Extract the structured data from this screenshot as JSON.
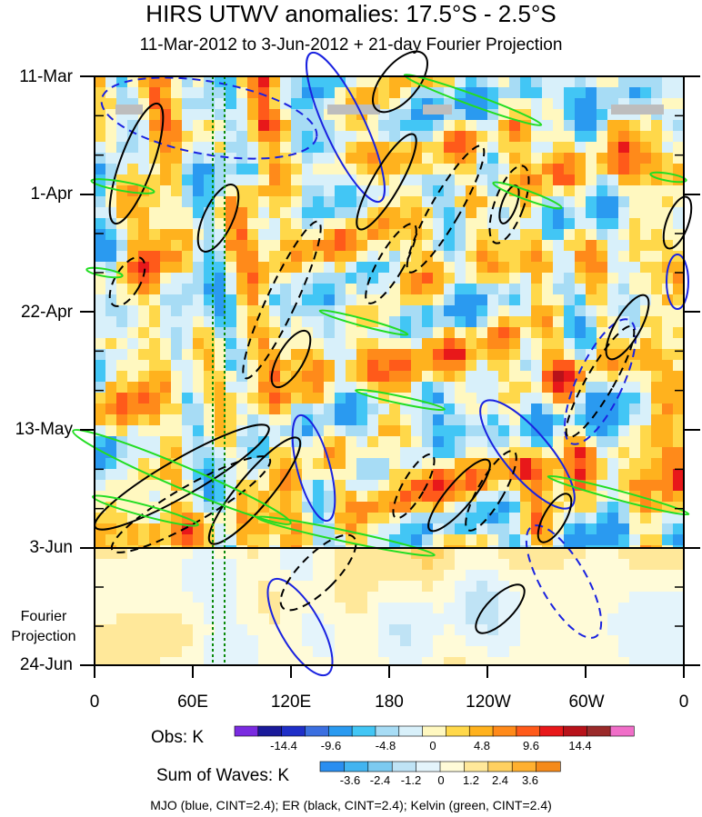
{
  "chart_data": {
    "type": "heatmap",
    "title": "HIRS UTWV anomalies: 17.5°S - 2.5°S",
    "subtitle": "11-Mar-2012 to 3-Jun-2012 + 21-day Fourier Projection",
    "y_ticks": [
      "11-Mar",
      "1-Apr",
      "22-Apr",
      "13-May",
      "3-Jun",
      "24-Jun"
    ],
    "x_ticks": [
      "0",
      "60E",
      "120E",
      "180",
      "120W",
      "60W",
      "0"
    ],
    "projection_label_lines": [
      "Fourier",
      "Projection"
    ],
    "obs_colorbar": {
      "label": "Obs: K",
      "tick_labels": [
        "-14.4",
        "-9.6",
        "-4.8",
        "0",
        "4.8",
        "9.6",
        "14.4"
      ],
      "colors": [
        "#7a2be0",
        "#1a1a9a",
        "#1f2fc8",
        "#3b6fe0",
        "#2a9af0",
        "#42c6f5",
        "#a7dcf5",
        "#d8f0fa",
        "#fff8c0",
        "#ffd84a",
        "#ffb21e",
        "#ff8a1a",
        "#ff5a1a",
        "#e8181a",
        "#b8121a",
        "#9a2a2a",
        "#f06ec8"
      ]
    },
    "waves_colorbar": {
      "label": "Sum of Waves: K",
      "tick_labels": [
        "-3.6",
        "-2.4",
        "-1.2",
        "0",
        "1.2",
        "2.4",
        "3.6"
      ],
      "colors": [
        "#2a8ef0",
        "#42b4f0",
        "#7ccaf0",
        "#bfe3f5",
        "#e4f4fb",
        "#fffbd8",
        "#ffe89a",
        "#ffd060",
        "#ffb030",
        "#f58a1a"
      ]
    },
    "footnote": "MJO (blue, CINT=2.4); ER (black, CINT=2.4); Kelvin (green, CINT=2.4)",
    "series": [
      {
        "name": "MJO",
        "color": "#1a22e0"
      },
      {
        "name": "ER",
        "color": "#000000"
      },
      {
        "name": "Kelvin",
        "color": "#22dd22"
      }
    ],
    "marker_color": "#0a8a0a",
    "gap_color": "#bdbdbd"
  }
}
